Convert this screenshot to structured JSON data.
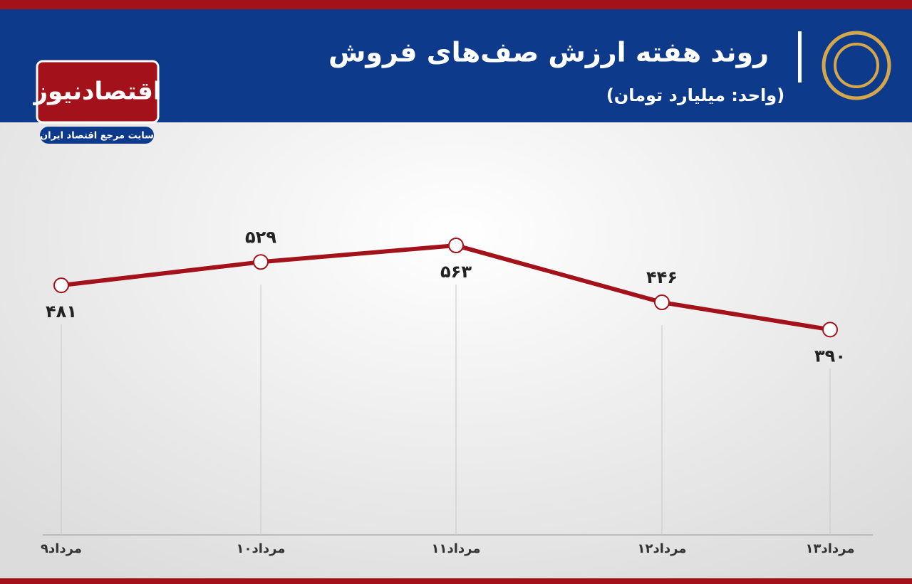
{
  "header": {
    "logo": "اقتصادنیوز",
    "tagline": "سایت مرجع اقتصاد ایران"
  },
  "chart_data": {
    "type": "line",
    "title": "روند هفته ارزش صف‌های فروش",
    "subtitle": "(واحد: میلیارد تومان)",
    "categories": [
      "۹مرداد",
      "۱۰مرداد",
      "۱۱مرداد",
      "۱۲مرداد",
      "۱۳مرداد"
    ],
    "values": [
      481,
      529,
      563,
      446,
      390
    ],
    "value_labels": [
      "۴۸۱",
      "۵۲۹",
      "۵۶۳",
      "۴۴۶",
      "۳۹۰"
    ],
    "color": "#a3121b",
    "ylim": [
      0,
      800
    ]
  }
}
